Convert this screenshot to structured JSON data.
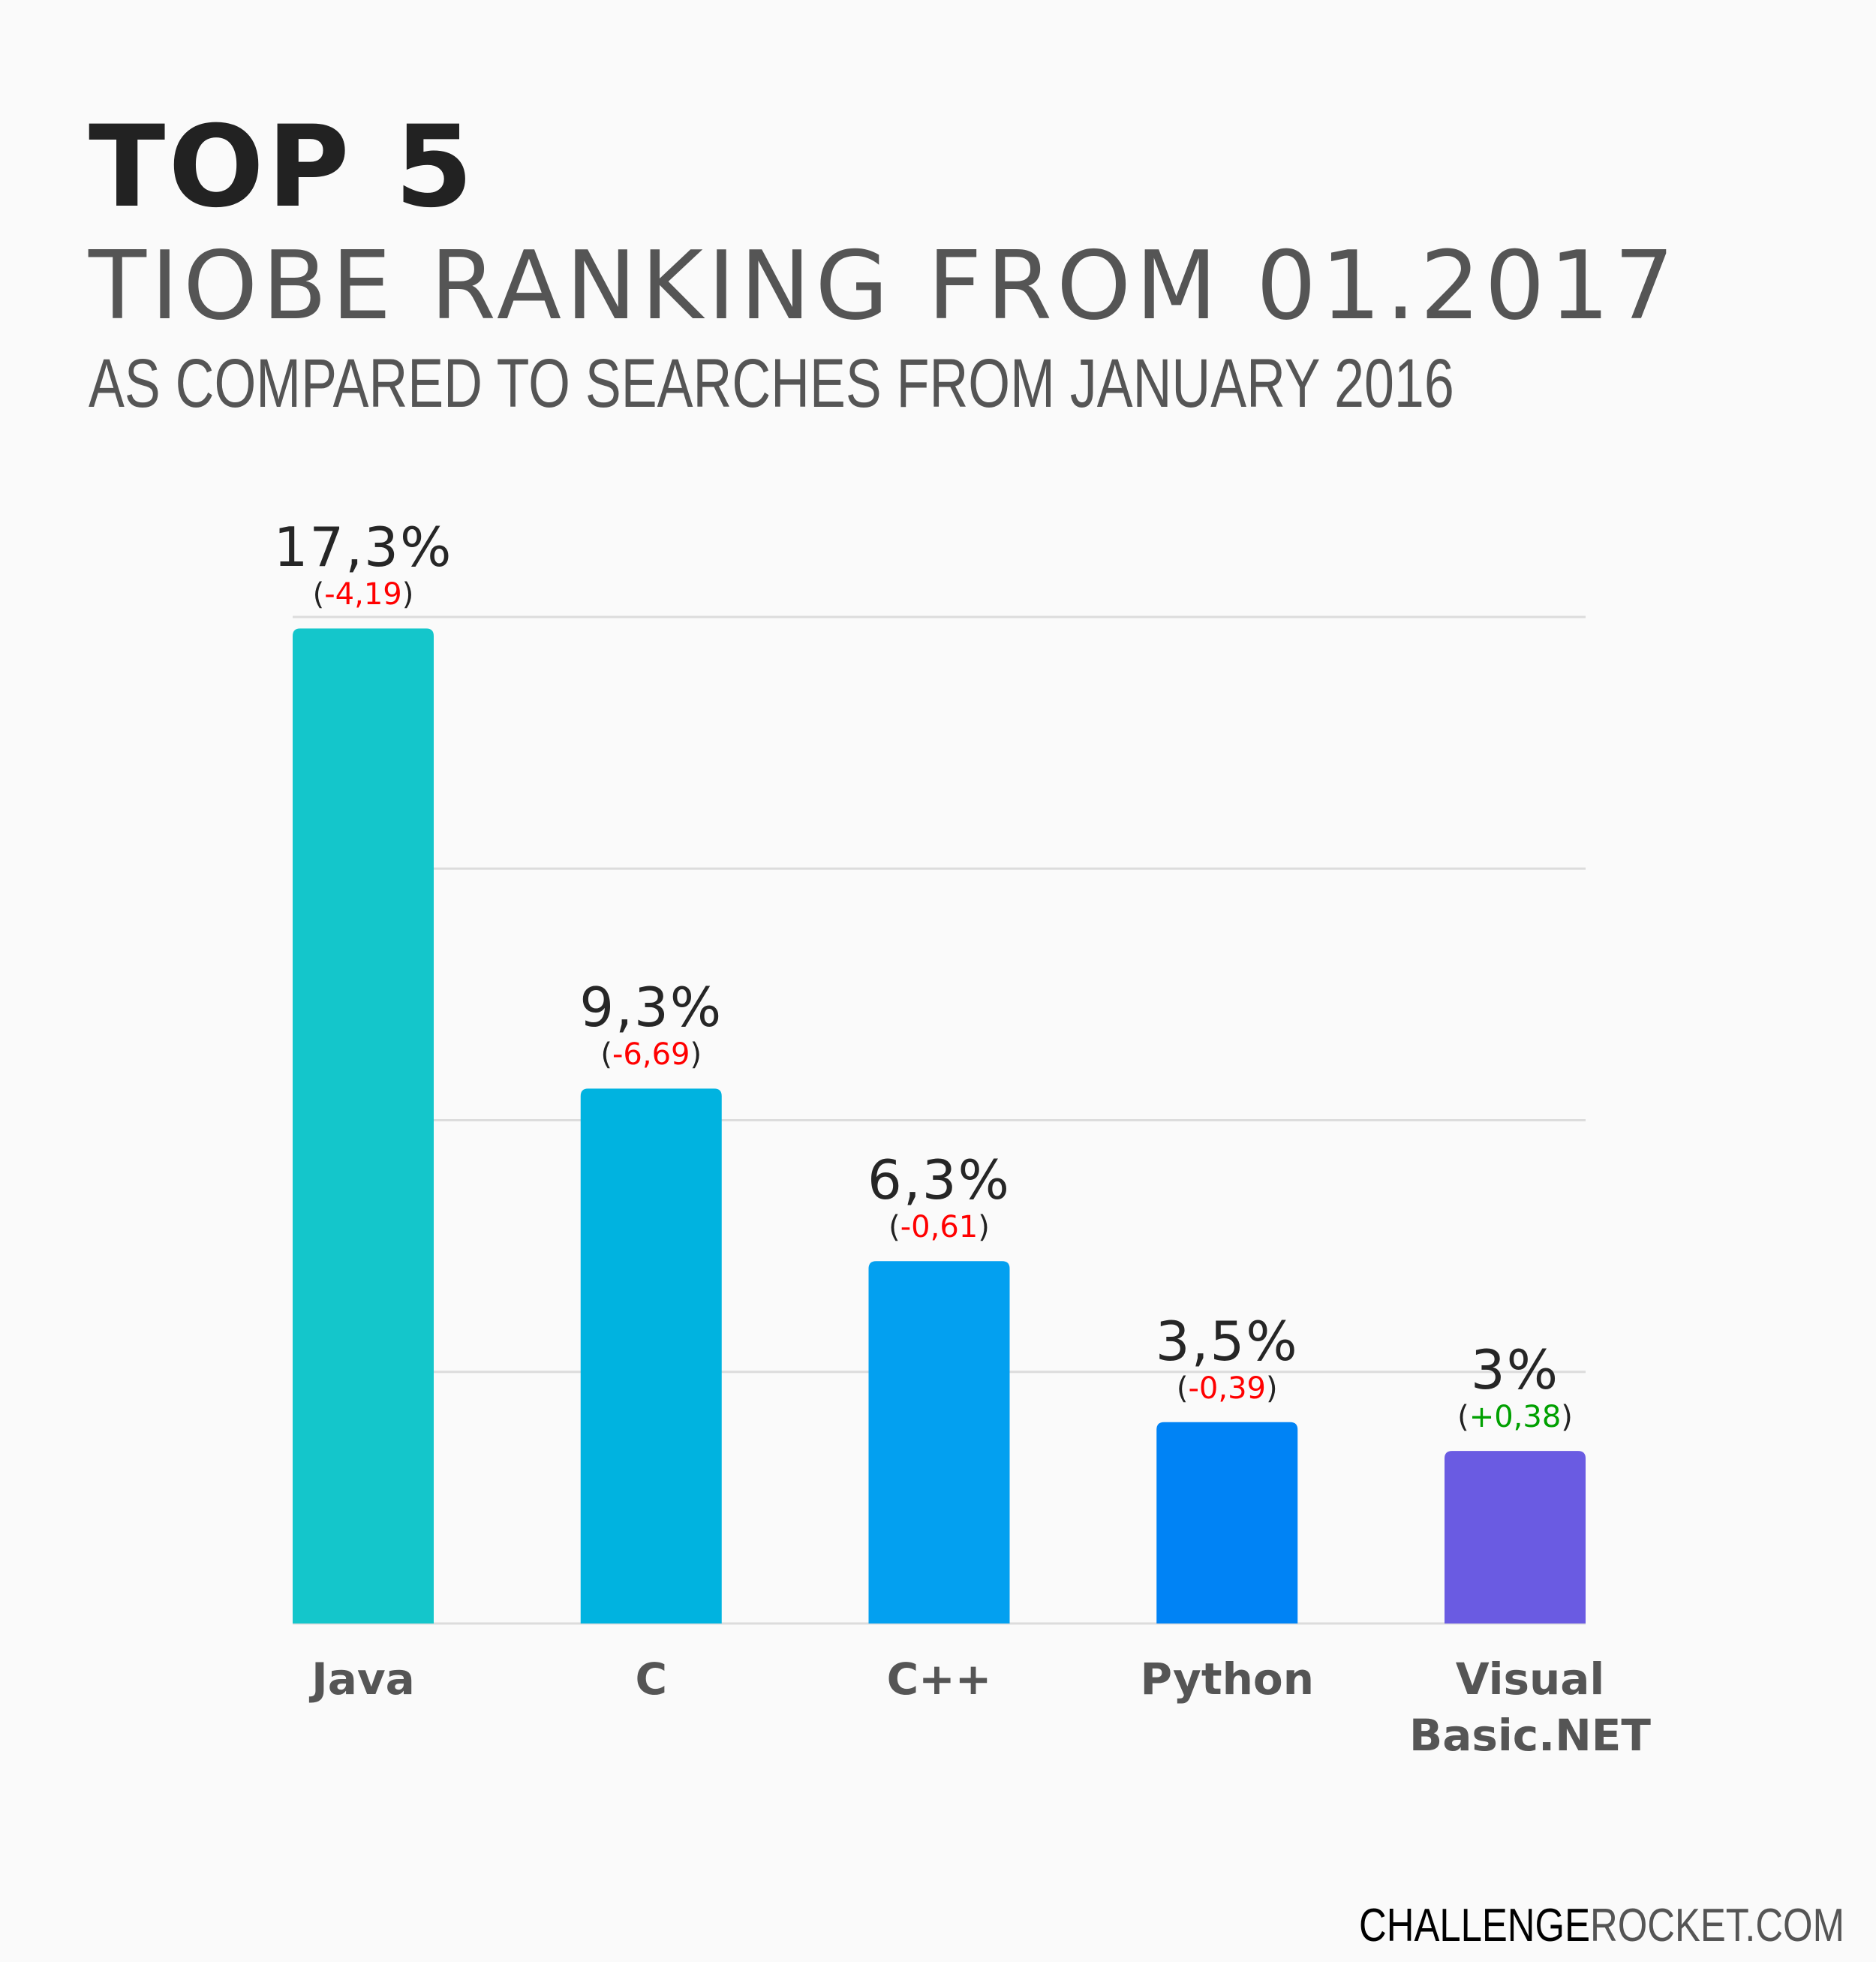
{
  "chart_data": {
    "type": "bar",
    "title": "TOP 5",
    "subtitle": "TIOBE RANKING FROM 01.2017",
    "subtitle2": "AS COMPARED TO SEARCHES FROM JANUARY 2016",
    "categories": [
      "Java",
      "C",
      "C++",
      "Python",
      "Visual Basic.NET"
    ],
    "values": [
      17.3,
      9.3,
      6.3,
      3.5,
      3.0
    ],
    "value_labels": [
      "17,3%",
      "9,3%",
      "6,3%",
      "3,5%",
      "3%"
    ],
    "changes": [
      "-4,19",
      "-6,69",
      "-0,61",
      "-0,39",
      "+0,38"
    ],
    "change_colors": [
      "#ff0000",
      "#ff0000",
      "#ff0000",
      "#ff0000",
      "#00a000"
    ],
    "bar_colors": [
      "#14c6cb",
      "#00b3e0",
      "#03a0f0",
      "#0083f5",
      "#6a5be2"
    ],
    "ylim": [
      0,
      17.5
    ],
    "grid": true,
    "axis_ticks_shown": false,
    "legend": "none"
  },
  "footer": {
    "part1": "CHALLENGE",
    "part2": "ROCKET.COM"
  }
}
